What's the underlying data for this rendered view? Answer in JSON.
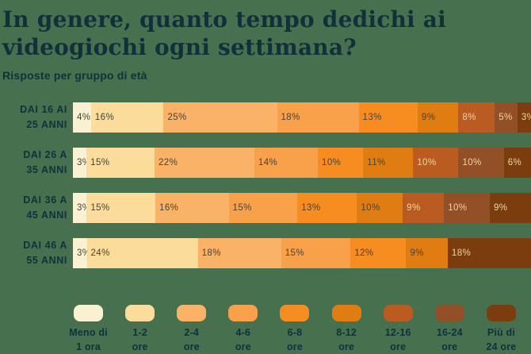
{
  "title": {
    "line1": "In genere, quanto tempo dedichi ai",
    "line2": "videogiochi ogni settimana?"
  },
  "subtitle": "Risposte per gruppo di età",
  "colors": {
    "background": "#47704F",
    "heading_text": "#12303C",
    "value_text_dark": "#474338",
    "value_text_light": "#F0D5A2",
    "palette": [
      "#FAF0D2",
      "#FBDC9B",
      "#FAB266",
      "#F9A04B",
      "#F78D20",
      "#E07D12",
      "#BA5C22",
      "#934F25",
      "#7B3C0E"
    ]
  },
  "chart_data": {
    "type": "bar",
    "stacked": true,
    "orientation": "horizontal",
    "unit": "%",
    "title": "In genere, quanto tempo dedichi ai videogiochi ogni settimana?",
    "subtitle": "Risposte per gruppo di età",
    "categories": [
      "Meno di 1 ora",
      "1-2 ore",
      "2-4 ore",
      "4-6 ore",
      "6-8 ore",
      "8-12 ore",
      "12-16 ore",
      "16-24 ore",
      "Più di 24 ore"
    ],
    "legend": [
      {
        "line1": "Meno di",
        "line2": "1 ora"
      },
      {
        "line1": "1-2",
        "line2": "ore"
      },
      {
        "line1": "2-4",
        "line2": "ore"
      },
      {
        "line1": "4-6",
        "line2": "ore"
      },
      {
        "line1": "6-8",
        "line2": "ore"
      },
      {
        "line1": "8-12",
        "line2": "ore"
      },
      {
        "line1": "12-16",
        "line2": "ore"
      },
      {
        "line1": "16-24",
        "line2": "ore"
      },
      {
        "line1": "Più di",
        "line2": "24 ore"
      }
    ],
    "legend_position": "bottom",
    "light_text_from_index": 6,
    "groups": [
      {
        "label_line1": "DAI 16 AI",
        "label_line2": "25 ANNI",
        "values": [
          4,
          16,
          25,
          18,
          13,
          9,
          8,
          5,
          3
        ]
      },
      {
        "label_line1": "DAI 26 A",
        "label_line2": "35 ANNI",
        "values": [
          3,
          15,
          22,
          14,
          10,
          11,
          10,
          10,
          6
        ]
      },
      {
        "label_line1": "DAI 36 A",
        "label_line2": "45 ANNI",
        "values": [
          3,
          15,
          16,
          15,
          13,
          10,
          9,
          10,
          9
        ]
      },
      {
        "label_line1": "DAI 46 A",
        "label_line2": "55 ANNI",
        "values": [
          3,
          24,
          18,
          15,
          12,
          9,
          0,
          0,
          18
        ]
      }
    ]
  }
}
